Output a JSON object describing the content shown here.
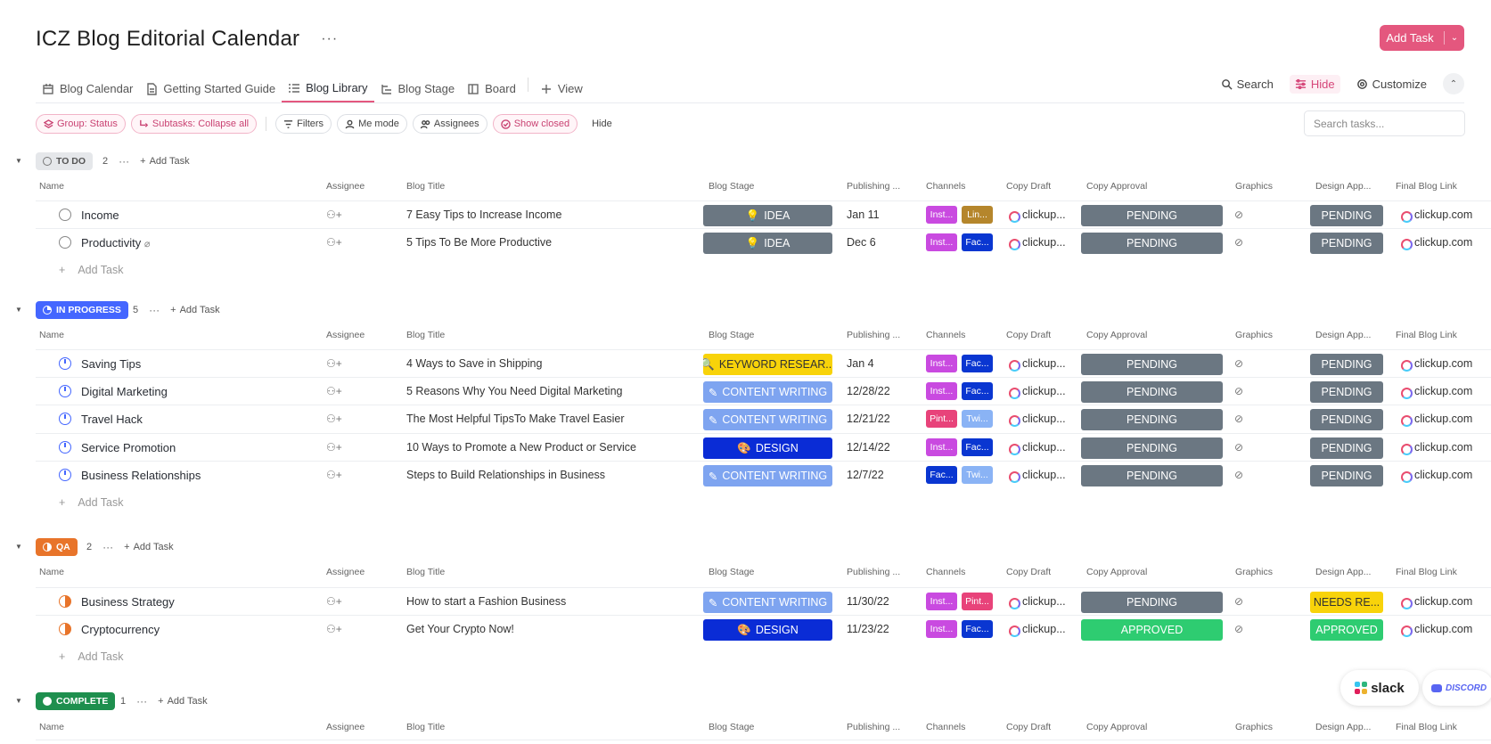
{
  "header": {
    "title": "ICZ Blog Editorial Calendar",
    "more": "···",
    "add_task": "Add Task",
    "add_task_caret": "⌄"
  },
  "tabs": [
    {
      "label": "Blog Calendar",
      "icon": "calendar-icon"
    },
    {
      "label": "Getting Started Guide",
      "icon": "doc-icon"
    },
    {
      "label": "Blog Library",
      "icon": "list-icon"
    },
    {
      "label": "Blog Stage",
      "icon": "gantt-icon"
    },
    {
      "label": "Board",
      "icon": "board-icon"
    },
    {
      "label": "View",
      "icon": "plus-icon"
    }
  ],
  "tools": {
    "search": "Search",
    "hide": "Hide",
    "customize": "Customize",
    "collapse": "⌃"
  },
  "filters": {
    "group": "Group: Status",
    "subtasks": "Subtasks: Collapse all",
    "filters": "Filters",
    "me_mode": "Me mode",
    "assignees": "Assignees",
    "show_closed": "Show closed",
    "hide": "Hide",
    "search_placeholder": "Search tasks..."
  },
  "columns": {
    "name": "Name",
    "assignee": "Assignee",
    "blog_title": "Blog Title",
    "blog_stage": "Blog Stage",
    "publishing": "Publishing ...",
    "channels": "Channels",
    "copy_draft": "Copy Draft",
    "copy_approval": "Copy Approval",
    "graphics": "Graphics",
    "design_app": "Design App...",
    "final_link": "Final Blog Link"
  },
  "colors": {
    "accent": "#e4577e",
    "todo": "#d3d5d9",
    "progress": "#4466ff",
    "qa": "#e8742a",
    "complete": "#1e8f4e",
    "idea": "#6b7782",
    "pending": "#6b7782",
    "approved": "#2ecc71",
    "keyword": "#f8d30a",
    "content": "#7ea4f0",
    "design": "#0a2cd6",
    "needs": "#f8d30a",
    "insta": "#c94ae0",
    "linkedin": "#b5862c",
    "facebook": "#0a36d1",
    "pinterest": "#e8437a",
    "twitter": "#8ab3f5"
  },
  "add_task_label": "Add Task",
  "groups": {
    "todo": {
      "label": "TO DO",
      "count": "2",
      "add": "Add Task",
      "rows": [
        {
          "name": "Income",
          "clip": "",
          "title": "7 Easy Tips to Increase Income",
          "stage": "IDEA",
          "stage_icon": "💡",
          "pub": "Jan 11",
          "ch1": "Inst...",
          "ch2": "Lin...",
          "copy": "clickup...",
          "appr": "PENDING",
          "dapp": "PENDING",
          "link": "clickup.com"
        },
        {
          "name": "Productivity",
          "clip": "⌕",
          "title": "5 Tips To Be More Productive",
          "stage": "IDEA",
          "stage_icon": "💡",
          "pub": "Dec 6",
          "ch1": "Inst...",
          "ch2": "Fac...",
          "copy": "clickup...",
          "appr": "PENDING",
          "dapp": "PENDING",
          "link": "clickup.com"
        }
      ]
    },
    "progress": {
      "label": "IN PROGRESS",
      "count": "5",
      "add": "Add Task",
      "rows": [
        {
          "name": "Saving Tips",
          "title": "4 Ways to Save in Shipping",
          "stage": "KEYWORD RESEAR...",
          "stage_icon": "🔍",
          "pub": "Jan 4",
          "ch1": "Inst...",
          "ch2": "Fac...",
          "copy": "clickup...",
          "appr": "PENDING",
          "dapp": "PENDING",
          "link": "clickup.com"
        },
        {
          "name": "Digital Marketing",
          "title": "5 Reasons Why You Need Digital Marketing",
          "stage": "CONTENT WRITING",
          "stage_icon": "✎",
          "pub": "12/28/22",
          "ch1": "Inst...",
          "ch2": "Fac...",
          "copy": "clickup...",
          "appr": "PENDING",
          "dapp": "PENDING",
          "link": "clickup.com"
        },
        {
          "name": "Travel Hack",
          "title": "The Most Helpful TipsTo Make Travel Easier",
          "stage": "CONTENT WRITING",
          "stage_icon": "✎",
          "pub": "12/21/22",
          "ch1": "Pint...",
          "ch2": "Twi...",
          "copy": "clickup...",
          "appr": "PENDING",
          "dapp": "PENDING",
          "link": "clickup.com"
        },
        {
          "name": "Service Promotion",
          "title": "10 Ways to Promote a New Product or Service",
          "stage": "DESIGN",
          "stage_icon": "🎨",
          "pub": "12/14/22",
          "ch1": "Inst...",
          "ch2": "Fac...",
          "copy": "clickup...",
          "appr": "PENDING",
          "dapp": "PENDING",
          "link": "clickup.com"
        },
        {
          "name": "Business Relationships",
          "title": "Steps to Build Relationships in Business",
          "stage": "CONTENT WRITING",
          "stage_icon": "✎",
          "pub": "12/7/22",
          "ch1": "Fac...",
          "ch2": "Twi...",
          "copy": "clickup...",
          "appr": "PENDING",
          "dapp": "PENDING",
          "link": "clickup.com"
        }
      ]
    },
    "qa": {
      "label": "QA",
      "count": "2",
      "add": "Add Task",
      "rows": [
        {
          "name": "Business Strategy",
          "title": "How to start a Fashion Business",
          "stage": "CONTENT WRITING",
          "stage_icon": "✎",
          "pub": "11/30/22",
          "ch1": "Inst...",
          "ch2": "Pint...",
          "copy": "clickup...",
          "appr": "PENDING",
          "dapp": "NEEDS RE...",
          "link": "clickup.com"
        },
        {
          "name": "Cryptocurrency",
          "title": "Get Your Crypto Now!",
          "stage": "DESIGN",
          "stage_icon": "🎨",
          "pub": "11/23/22",
          "ch1": "Inst...",
          "ch2": "Fac...",
          "copy": "clickup...",
          "appr": "APPROVED",
          "dapp": "APPROVED",
          "link": "clickup.com"
        }
      ]
    },
    "complete": {
      "label": "COMPLETE",
      "count": "1",
      "add": "Add Task"
    }
  },
  "floats": {
    "slack": "slack",
    "discord": "DISCORD"
  }
}
